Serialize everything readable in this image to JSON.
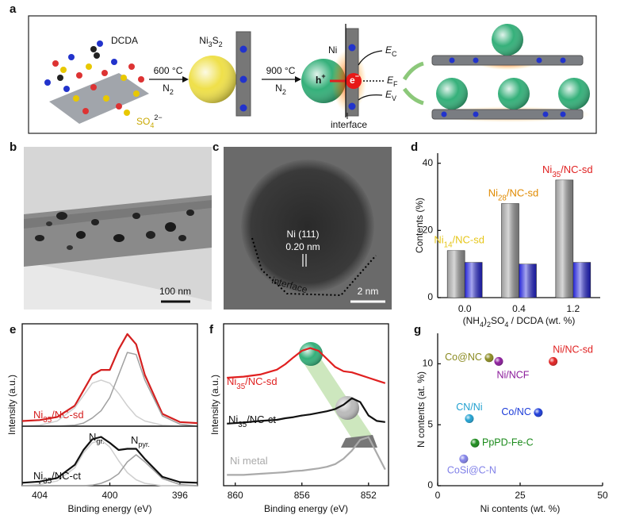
{
  "panel_labels": [
    "a",
    "b",
    "c",
    "d",
    "e",
    "f",
    "g"
  ],
  "schematic": {
    "precursor": "DCDA",
    "sulfate": {
      "text": "SO4",
      "charge": "2−"
    },
    "step1": {
      "temperature": "600 °C",
      "gas": "N2"
    },
    "intermediate": "Ni3S2",
    "step2": {
      "temperature": "900 °C",
      "gas": "N2"
    },
    "metal": "Ni",
    "hole": {
      "symbol": "h",
      "sup": "+"
    },
    "electron": {
      "symbol": "e",
      "sup": "−"
    },
    "band_edges": [
      {
        "symbol": "E",
        "sub": "C"
      },
      {
        "symbol": "E",
        "sub": "F"
      },
      {
        "symbol": "E",
        "sub": "V"
      }
    ],
    "interface": "interface"
  },
  "tem": {
    "scale_bar": "100 nm"
  },
  "hrtem": {
    "plane": "Ni (111)",
    "spacing": "0.20 nm",
    "interface": "interface",
    "scale_bar": "2 nm"
  },
  "chart_data": [
    {
      "type": "bar",
      "categories": [
        "0.0",
        "0.4",
        "1.2"
      ],
      "series": [
        {
          "color": "#9c9c9c",
          "values": [
            14,
            28,
            35
          ]
        },
        {
          "color": "#2323d6",
          "values": [
            10.5,
            10,
            10.5
          ]
        }
      ],
      "ylim": [
        0,
        43
      ],
      "yticks": [
        0,
        20,
        40
      ],
      "x_label": "(NH4)2SO4 / DCDA (wt. %)",
      "y_label": "Contents (%)",
      "annotations": [
        {
          "text": "Ni14/NC-sd",
          "color": "#e6c619"
        },
        {
          "text": "Ni28/NC-sd",
          "color": "#e08a00"
        },
        {
          "text": "Ni35/NC-sd",
          "color": "#e02020"
        }
      ]
    },
    {
      "type": "line",
      "x": [
        405,
        404,
        403,
        402,
        401.5,
        401,
        400.5,
        400,
        399.5,
        399,
        398.5,
        398,
        397,
        396,
        395
      ],
      "series": [
        {
          "name": "Ni35/NC-sd",
          "color": "#d42020",
          "values": [
            0.05,
            0.06,
            0.09,
            0.2,
            0.35,
            0.5,
            0.55,
            0.55,
            0.75,
            0.9,
            0.8,
            0.5,
            0.12,
            0.04,
            0.03
          ]
        },
        {
          "color": "#cfcfcf",
          "values": [
            0,
            0.01,
            0.05,
            0.18,
            0.3,
            0.42,
            0.45,
            0.42,
            0.32,
            0.2,
            0.1,
            0.05,
            0.01,
            0,
            0
          ]
        },
        {
          "color": "#a0a0a0",
          "values": [
            0,
            0,
            0,
            0.01,
            0.03,
            0.08,
            0.15,
            0.28,
            0.5,
            0.72,
            0.7,
            0.45,
            0.1,
            0.02,
            0
          ]
        }
      ],
      "xlim": [
        405,
        395
      ],
      "ylim": [
        0,
        1
      ],
      "y_label": "Intensity (a.u.)"
    },
    {
      "type": "line",
      "x": [
        405,
        404,
        403,
        402,
        401.5,
        401,
        400.5,
        400,
        399.5,
        399,
        398.5,
        398,
        397,
        396,
        395
      ],
      "series": [
        {
          "color": "#cfcfcf",
          "values": [
            0,
            0.02,
            0.08,
            0.3,
            0.55,
            0.72,
            0.77,
            0.65,
            0.42,
            0.22,
            0.1,
            0.04,
            0,
            0,
            0
          ]
        },
        {
          "color": "#a0a0a0",
          "values": [
            0,
            0,
            0,
            0,
            0,
            0.01,
            0.04,
            0.1,
            0.2,
            0.4,
            0.52,
            0.4,
            0.12,
            0.02,
            0
          ]
        },
        {
          "name": "Ni35/NC-ct",
          "color": "#111111",
          "values": [
            0.05,
            0.07,
            0.13,
            0.35,
            0.6,
            0.78,
            0.82,
            0.72,
            0.6,
            0.62,
            0.62,
            0.45,
            0.15,
            0.06,
            0.05
          ]
        }
      ],
      "xlim": [
        405,
        395
      ],
      "xticks": [
        404,
        400,
        396
      ],
      "ylim": [
        0,
        1
      ],
      "x_label": "Binding energy (eV)",
      "annotations": [
        {
          "symbol": "N",
          "sub": "gr."
        },
        {
          "symbol": "N",
          "sub": "pyr."
        }
      ]
    },
    {
      "type": "line",
      "x": [
        860.5,
        859.5,
        858.5,
        857.5,
        857,
        856.5,
        856,
        855.5,
        855,
        854.5,
        854,
        853.5,
        853,
        852.5,
        852,
        851.5,
        851
      ],
      "series": [
        {
          "name": "Ni35/NC-sd",
          "color": "#e02020",
          "values": [
            2.0,
            2.02,
            2.06,
            2.15,
            2.25,
            2.38,
            2.5,
            2.55,
            2.5,
            2.35,
            2.2,
            2.12,
            2.1,
            2.05,
            2.0,
            1.95,
            1.9
          ]
        },
        {
          "name": "Ni35/NC-ct",
          "color": "#111111",
          "values": [
            1.15,
            1.17,
            1.2,
            1.22,
            1.25,
            1.27,
            1.3,
            1.32,
            1.35,
            1.38,
            1.42,
            1.5,
            1.62,
            1.55,
            1.3,
            1.2,
            1.18
          ]
        },
        {
          "name": "Ni metal",
          "color": "#aaaaaa",
          "values": [
            0.2,
            0.2,
            0.22,
            0.24,
            0.25,
            0.27,
            0.28,
            0.3,
            0.32,
            0.35,
            0.4,
            0.5,
            0.65,
            0.85,
            0.9,
            0.6,
            0.3
          ]
        }
      ],
      "xlim": [
        860.7,
        850.8
      ],
      "xticks": [
        860,
        856,
        852
      ],
      "ylim": [
        0,
        3
      ],
      "x_label": "Binding energy (eV)",
      "y_label": "Intensity (a.u.)"
    },
    {
      "type": "scatter",
      "points": [
        {
          "name": "Ni/NC-sd",
          "x": 35,
          "y": 10.2,
          "color": "#e02020"
        },
        {
          "name": "Co@NC",
          "x": 15.6,
          "y": 10.5,
          "color": "#8a8a20"
        },
        {
          "name": "Ni/NCF",
          "x": 18.5,
          "y": 10.2,
          "color": "#8a1a9a"
        },
        {
          "name": "Co/NC",
          "x": 30.5,
          "y": 6.0,
          "color": "#1a3ad8"
        },
        {
          "name": "CN/Ni",
          "x": 9.6,
          "y": 5.5,
          "color": "#20a0d0"
        },
        {
          "name": "PpPD-Fe-C",
          "x": 11.3,
          "y": 3.5,
          "color": "#1a8a1a"
        },
        {
          "name": "CoSi@C-N",
          "x": 7.9,
          "y": 2.2,
          "color": "#8080e8"
        }
      ],
      "xlim": [
        0,
        50
      ],
      "xticks": [
        0,
        25,
        50
      ],
      "ylim": [
        0,
        12.5
      ],
      "yticks": [
        0,
        5,
        10
      ],
      "x_label": "Ni contents (wt. %)",
      "y_label": "N contents (at. %)"
    }
  ]
}
